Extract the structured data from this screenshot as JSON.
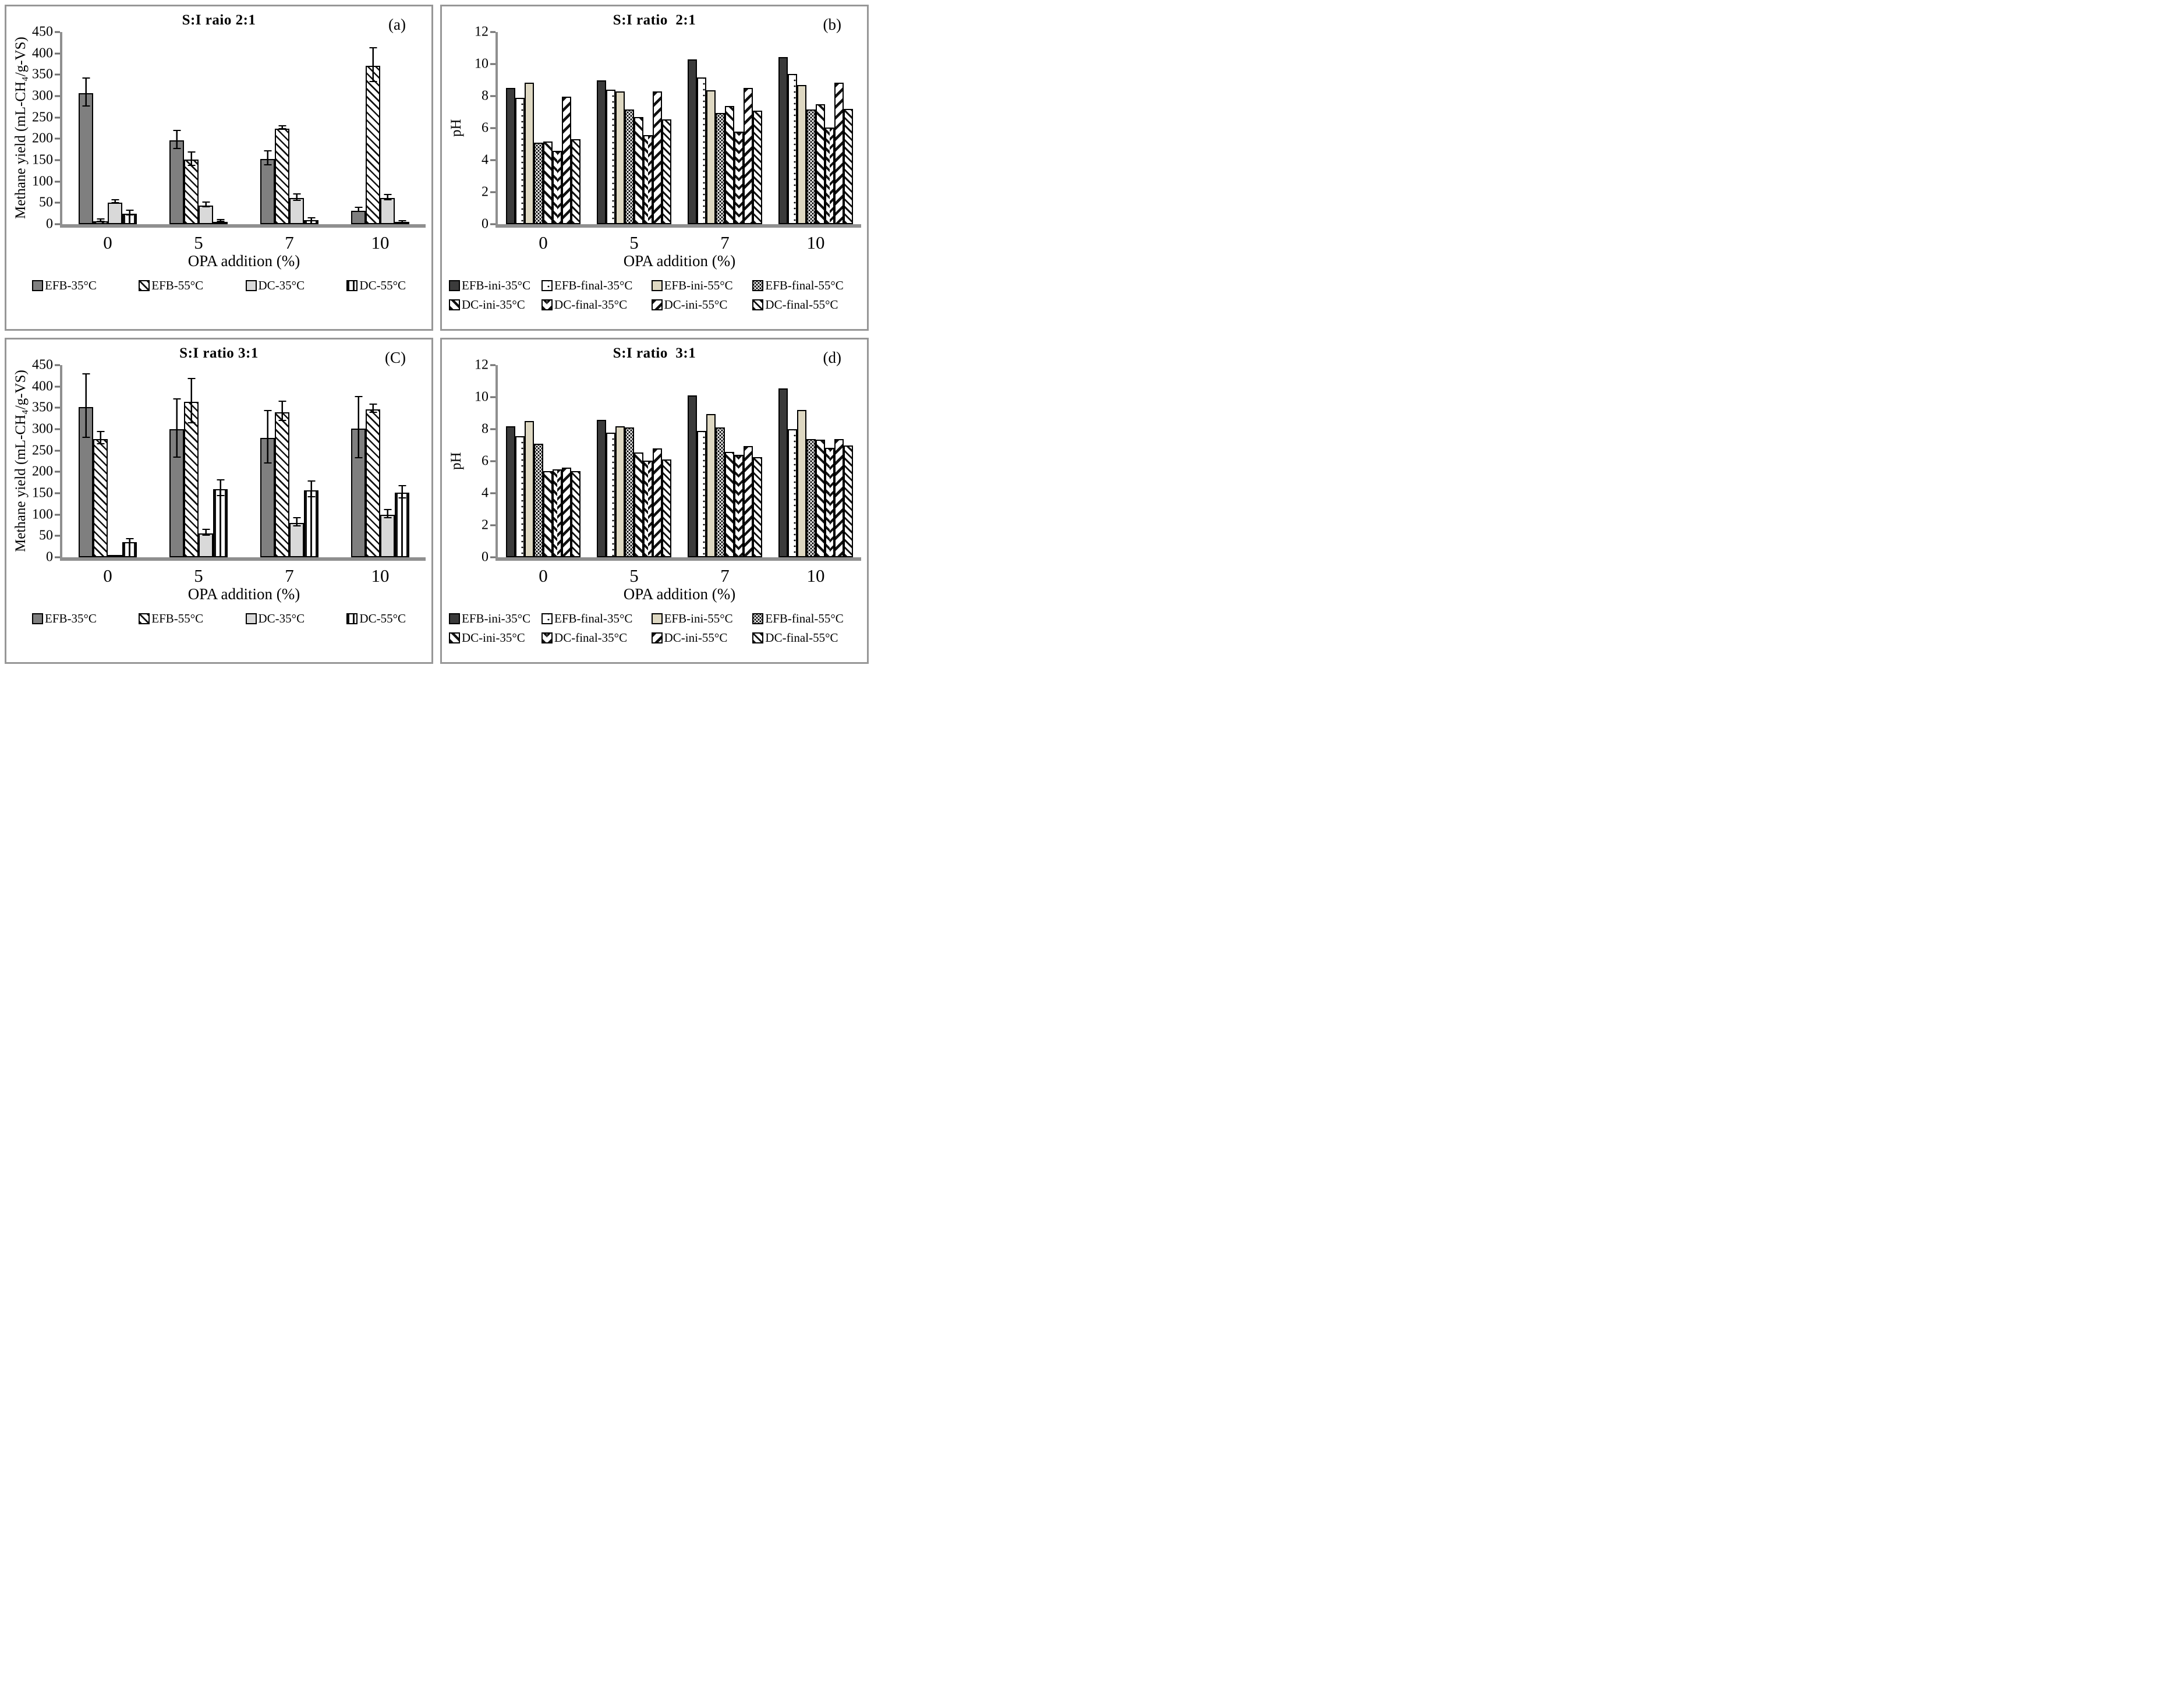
{
  "colors": {
    "panel_border": "#979797",
    "axis_line": "#8f8f8f",
    "bar_outline": "#000000",
    "efb_35_fill": "#7f7f7f",
    "dc_35_fill": "#d9d9d9",
    "efb_ini_35_fill": "#3b3b3b",
    "efb_ini_55_fill": "#ded8c2"
  },
  "chart_data": [
    {
      "id": "a",
      "type": "bar",
      "title": "S:I raio 2:1",
      "corner_label": "(a)",
      "xlabel": "OPA addition (%)",
      "ylabel": "Methane yield (mL-CH₄/g-VS)",
      "ylim": [
        0,
        450
      ],
      "yticks": [
        0,
        50,
        100,
        150,
        200,
        250,
        300,
        350,
        400,
        450
      ],
      "categories": [
        "0",
        "5",
        "7",
        "10"
      ],
      "grid": false,
      "legend_layout": "row",
      "error_bars": true,
      "series": [
        {
          "name": "EFB-35°C",
          "pattern": "solid-gray",
          "values": [
            307,
            196,
            153,
            32
          ],
          "errors": [
            31,
            20,
            15,
            3
          ]
        },
        {
          "name": "EFB-55°C",
          "pattern": "hatch-back",
          "values": [
            7,
            151,
            224,
            371
          ],
          "errors": [
            1,
            14,
            2,
            38
          ]
        },
        {
          "name": "DC-35°C",
          "pattern": "solid-light",
          "values": [
            51,
            44,
            61,
            61
          ],
          "errors": [
            2,
            4,
            6,
            5
          ]
        },
        {
          "name": "DC-55°C",
          "pattern": "vlines",
          "values": [
            25,
            6,
            9,
            3
          ],
          "errors": [
            4,
            1,
            2,
            1
          ]
        }
      ]
    },
    {
      "id": "b",
      "type": "bar",
      "title": "S:I ratio  2:1",
      "corner_label": "(b)",
      "xlabel": "OPA addition (%)",
      "ylabel": "pH",
      "ylim": [
        0,
        12
      ],
      "yticks": [
        0,
        2,
        4,
        6,
        8,
        10,
        12
      ],
      "categories": [
        "0",
        "5",
        "7",
        "10"
      ],
      "grid": false,
      "legend_layout": "grid",
      "error_bars": false,
      "series": [
        {
          "name": "EFB-ini-35°C",
          "pattern": "solid-dark",
          "values": [
            8.5,
            9.0,
            10.3,
            10.45
          ]
        },
        {
          "name": "EFB-final-35°C",
          "pattern": "dots-sparse",
          "values": [
            7.9,
            8.4,
            9.15,
            9.4
          ]
        },
        {
          "name": "EFB-ini-55°C",
          "pattern": "solid-beige",
          "values": [
            8.85,
            8.3,
            8.35,
            8.7
          ]
        },
        {
          "name": "EFB-final-55°C",
          "pattern": "dots-dense",
          "values": [
            5.1,
            7.15,
            6.95,
            7.15
          ]
        },
        {
          "name": "DC-ini-35°C",
          "pattern": "steep-back",
          "values": [
            5.15,
            6.7,
            7.4,
            7.5
          ]
        },
        {
          "name": "DC-final-35°C",
          "pattern": "herringbone",
          "values": [
            4.6,
            5.55,
            5.8,
            6.05
          ]
        },
        {
          "name": "DC-ini-55°C",
          "pattern": "diag-fwd",
          "values": [
            7.95,
            8.3,
            8.5,
            8.85
          ]
        },
        {
          "name": "DC-final-55°C",
          "pattern": "thin-back",
          "values": [
            5.3,
            6.55,
            7.1,
            7.2
          ]
        }
      ]
    },
    {
      "id": "c",
      "type": "bar",
      "title": "S:I ratio 3:1",
      "corner_label": "(C)",
      "xlabel": "OPA addition (%)",
      "ylabel": "Methane yield (mL-CH₄/g-VS)",
      "ylim": [
        0,
        450
      ],
      "yticks": [
        0,
        50,
        100,
        150,
        200,
        250,
        300,
        350,
        400,
        450
      ],
      "categories": [
        "0",
        "5",
        "7",
        "10"
      ],
      "grid": false,
      "legend_layout": "row",
      "error_bars": true,
      "series": [
        {
          "name": "EFB-35°C",
          "pattern": "solid-gray",
          "values": [
            352,
            300,
            280,
            302
          ],
          "errors": [
            73,
            67,
            60,
            70
          ]
        },
        {
          "name": "EFB-55°C",
          "pattern": "hatch-back",
          "values": [
            277,
            364,
            340,
            346
          ],
          "errors": [
            13,
            50,
            21,
            8
          ]
        },
        {
          "name": "DC-35°C",
          "pattern": "solid-light",
          "values": [
            2,
            56,
            80,
            100
          ],
          "errors": [
            0,
            5,
            8,
            8
          ]
        },
        {
          "name": "DC-55°C",
          "pattern": "vlines",
          "values": [
            36,
            160,
            157,
            151
          ],
          "errors": [
            3,
            17,
            17,
            13
          ]
        }
      ]
    },
    {
      "id": "d",
      "type": "bar",
      "title": "S:I ratio  3:1",
      "corner_label": "(d)",
      "xlabel": "OPA addition (%)",
      "ylabel": "pH",
      "ylim": [
        0,
        12
      ],
      "yticks": [
        0,
        2,
        4,
        6,
        8,
        10,
        12
      ],
      "categories": [
        "0",
        "5",
        "7",
        "10"
      ],
      "grid": false,
      "legend_layout": "grid",
      "error_bars": false,
      "series": [
        {
          "name": "EFB-ini-35°C",
          "pattern": "solid-dark",
          "values": [
            8.2,
            8.6,
            10.1,
            10.55
          ]
        },
        {
          "name": "EFB-final-35°C",
          "pattern": "dots-sparse",
          "values": [
            7.55,
            7.8,
            7.9,
            8.0
          ]
        },
        {
          "name": "EFB-ini-55°C",
          "pattern": "solid-beige",
          "values": [
            8.5,
            8.2,
            8.95,
            9.2
          ]
        },
        {
          "name": "EFB-final-55°C",
          "pattern": "dots-dense",
          "values": [
            7.1,
            8.1,
            8.1,
            7.4
          ]
        },
        {
          "name": "DC-ini-35°C",
          "pattern": "steep-back",
          "values": [
            5.4,
            6.55,
            6.6,
            7.35
          ]
        },
        {
          "name": "DC-final-35°C",
          "pattern": "herringbone",
          "values": [
            5.5,
            6.05,
            6.4,
            6.85
          ]
        },
        {
          "name": "DC-ini-55°C",
          "pattern": "diag-fwd",
          "values": [
            5.6,
            6.8,
            6.95,
            7.4
          ]
        },
        {
          "name": "DC-final-55°C",
          "pattern": "thin-back",
          "values": [
            5.4,
            6.1,
            6.25,
            7.0
          ]
        }
      ]
    }
  ]
}
